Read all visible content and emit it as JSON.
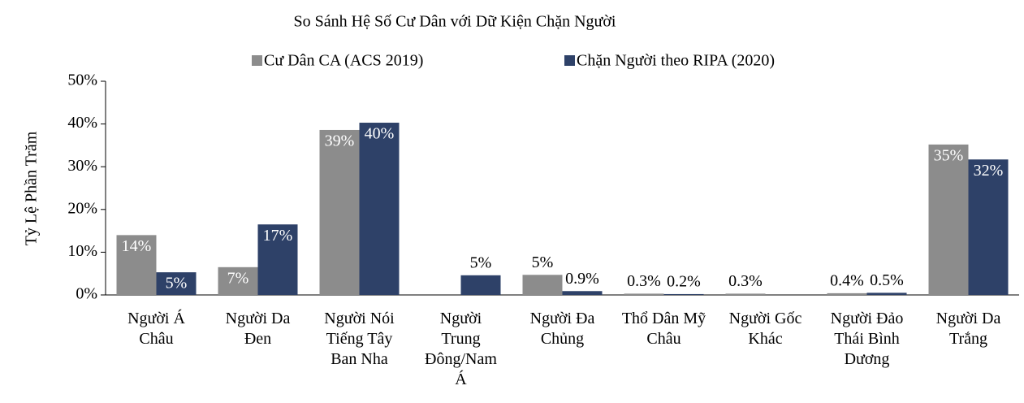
{
  "chart_data": {
    "type": "bar",
    "title": "So Sánh Hệ Số Cư Dân với Dữ Kiện Chặn Người",
    "ylabel": "Tỷ Lệ Phần Trăm",
    "categories": [
      "Người Á Châu",
      "Người Da Đen",
      "Người Nói Tiếng Tây Ban Nha",
      "Người Trung Đông/Nam Á",
      "Người Đa Chủng",
      "Thổ Dân Mỹ Châu",
      "Người Gốc Khác",
      "Người Đảo Thái Bình Dương",
      "Người Da Trắng"
    ],
    "series": [
      {
        "name": "Cư Dân CA (ACS 2019)",
        "color": "#8c8c8c",
        "values": [
          14.0,
          6.5,
          38.6,
          null,
          4.7,
          0.3,
          0.3,
          0.4,
          35.2
        ],
        "value_labels": [
          "14%",
          "7%",
          "39%",
          null,
          "5%",
          "0.3%",
          "0.3%",
          "0.4%",
          "35%"
        ]
      },
      {
        "name": "Chặn Người theo RIPA (2020)",
        "color": "#2e4168",
        "values": [
          5.3,
          16.5,
          40.3,
          4.6,
          0.9,
          0.2,
          null,
          0.5,
          31.7
        ],
        "value_labels": [
          "5%",
          "17%",
          "40%",
          "5%",
          "0.9%",
          "0.2%",
          null,
          "0.5%",
          "32%"
        ]
      }
    ],
    "ylim": [
      0,
      50
    ],
    "yticks": [
      {
        "value": 0,
        "label": "0%"
      },
      {
        "value": 10,
        "label": "10%"
      },
      {
        "value": 20,
        "label": "20%"
      },
      {
        "value": 30,
        "label": "30%"
      },
      {
        "value": 40,
        "label": "40%"
      },
      {
        "value": 50,
        "label": "50%"
      }
    ],
    "legend": "top"
  }
}
